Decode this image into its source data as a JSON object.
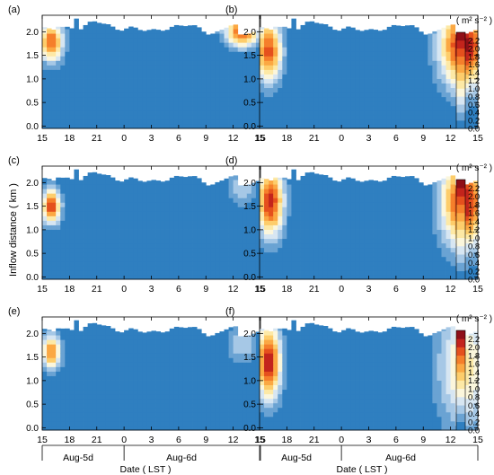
{
  "chart_data": {
    "type": "heatmap",
    "ylabel": "Inflow distance ( km )",
    "xlabel": "Date ( LST )",
    "date_labels": [
      "Aug-5d",
      "Aug-6d"
    ],
    "x_tick_labels": [
      "15",
      "18",
      "21",
      "0",
      "3",
      "6",
      "9",
      "12",
      "15"
    ],
    "x_tick_hours": [
      0,
      3,
      6,
      9,
      12,
      15,
      18,
      21,
      24
    ],
    "xlim_hours": [
      0,
      24
    ],
    "ylim_km": [
      -0.05,
      2.35
    ],
    "y_tick_labels": [
      "0.0",
      "0.5",
      "1.0",
      "1.5",
      "2.0"
    ],
    "y_ticks_km": [
      0.0,
      0.5,
      1.0,
      1.5,
      2.0
    ],
    "colorbar": {
      "unit_label": "( m² s⁻² )",
      "tick_labels": [
        "0.0",
        "0.2",
        "0.4",
        "0.6",
        "0.8",
        "1.0",
        "1.2",
        "1.4",
        "1.6",
        "1.8",
        "2.0",
        "2.2"
      ],
      "bounds": [
        0.0,
        0.2,
        0.4,
        0.6,
        0.8,
        1.0,
        1.2,
        1.4,
        1.6,
        1.8,
        2.0,
        2.2,
        2.4
      ],
      "colors": [
        "#2f7fc0",
        "#6aa3d3",
        "#a6c8e6",
        "#d7e6f2",
        "#fbf6dc",
        "#fde9a6",
        "#fdcd6b",
        "#fba843",
        "#f57f2b",
        "#e5501d",
        "#c3241c",
        "#8f0f17"
      ]
    },
    "colors": {
      "below_zero": "#2b7bbf",
      "no_data": "#ffffff"
    },
    "panels": [
      {
        "label": "(a)",
        "hot_spots": [
          {
            "hour": 1.0,
            "km": 1.8,
            "peak": 1.8,
            "sx": 0.9,
            "sy": 0.3
          },
          {
            "hour": 22.0,
            "km": 2.0,
            "peak": 1.9,
            "sx": 1.3,
            "sy": 0.22
          }
        ]
      },
      {
        "label": "(b)",
        "hot_spots": [
          {
            "hour": 1.0,
            "km": 1.6,
            "peak": 1.9,
            "sx": 1.0,
            "sy": 0.45
          },
          {
            "hour": 22.5,
            "km": 1.7,
            "peak": 2.3,
            "sx": 1.8,
            "sy": 0.6
          }
        ]
      },
      {
        "label": "(c)",
        "hot_spots": [
          {
            "hour": 1.0,
            "km": 1.5,
            "peak": 2.0,
            "sx": 0.7,
            "sy": 0.25
          },
          {
            "hour": 22.0,
            "km": 1.9,
            "peak": 0.6,
            "sx": 1.1,
            "sy": 0.25
          }
        ]
      },
      {
        "label": "(d)",
        "hot_spots": [
          {
            "hour": 1.2,
            "km": 1.6,
            "peak": 2.1,
            "sx": 1.0,
            "sy": 0.5
          },
          {
            "hour": 22.5,
            "km": 1.6,
            "peak": 2.2,
            "sx": 1.7,
            "sy": 0.65
          }
        ]
      },
      {
        "label": "(e)",
        "hot_spots": [
          {
            "hour": 1.0,
            "km": 1.6,
            "peak": 1.7,
            "sx": 0.7,
            "sy": 0.25
          },
          {
            "hour": 22.0,
            "km": 1.8,
            "peak": 0.6,
            "sx": 1.1,
            "sy": 0.3
          }
        ]
      },
      {
        "label": "(f)",
        "hot_spots": [
          {
            "hour": 1.0,
            "km": 1.4,
            "peak": 2.2,
            "sx": 0.9,
            "sy": 0.55
          },
          {
            "hour": 22.5,
            "km": 1.3,
            "peak": 1.1,
            "sx": 2.0,
            "sy": 0.9
          }
        ]
      }
    ]
  }
}
